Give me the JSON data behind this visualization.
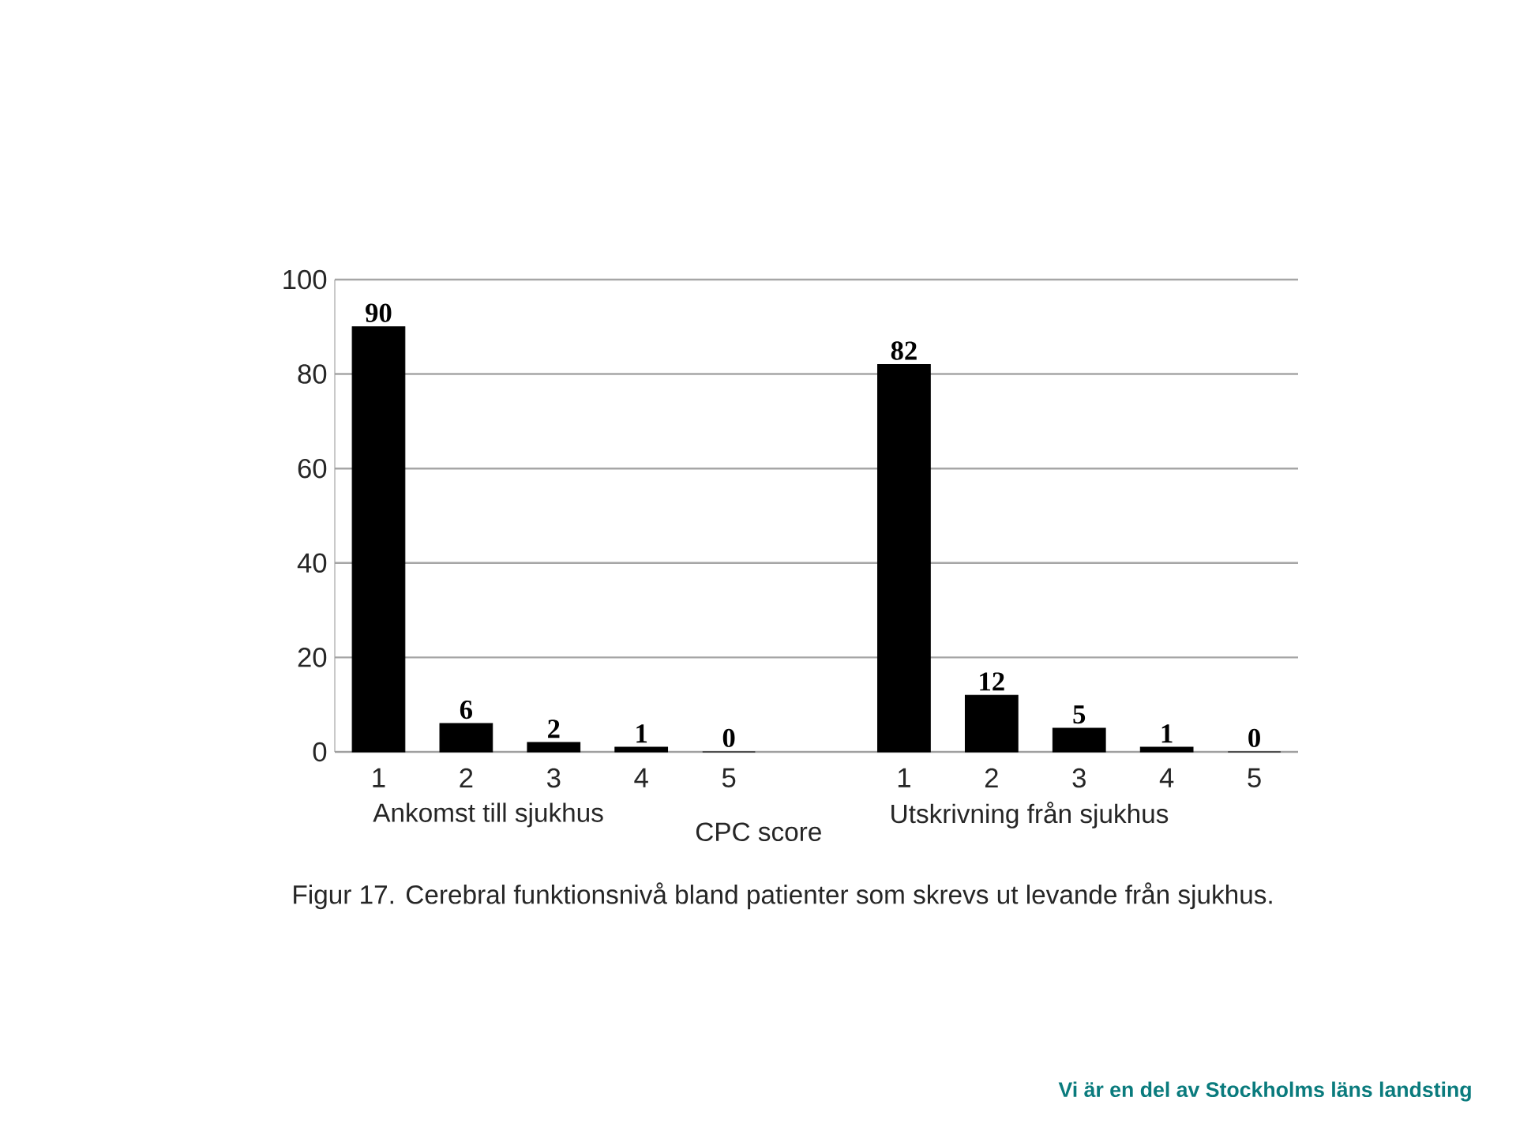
{
  "chart_data": {
    "type": "bar",
    "title": "Figur 17. Cerebral funktionsnivå bland patienter som skrevs ut levande från sjukhus.",
    "xlabel": "CPC score",
    "categories": [
      "1",
      "2",
      "3",
      "4",
      "5",
      null,
      "1",
      "2",
      "3",
      "4",
      "5"
    ],
    "values": [
      90,
      6,
      2,
      1,
      0,
      null,
      82,
      12,
      5,
      1,
      0
    ],
    "color": "#000000",
    "data_labels": true,
    "grid": "y",
    "ylim": [
      0,
      100
    ],
    "yticks": [
      0,
      20,
      40,
      60,
      80,
      100
    ],
    "annotations": [
      "Ankomst till sjukhus",
      "Utskrivning från sjukhus",
      "Vi är en del av Stockholms läns landsting"
    ]
  }
}
